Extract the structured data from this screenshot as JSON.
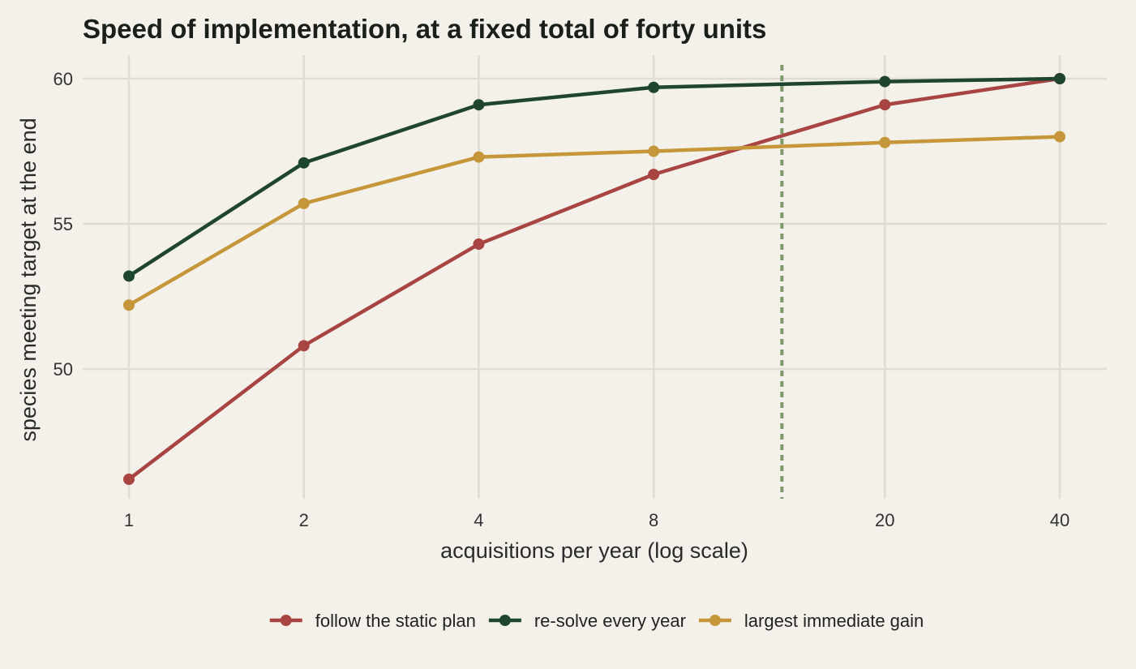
{
  "chart_data": {
    "type": "line",
    "title": "Speed of implementation, at a fixed total of forty units",
    "xlabel": "acquisitions per year (log scale)",
    "ylabel": "species meeting target at the end",
    "x_scale": "log",
    "x": [
      1,
      2,
      4,
      8,
      20,
      40
    ],
    "xticks": [
      "1",
      "2",
      "4",
      "8",
      "20",
      "40"
    ],
    "yticks": [
      50,
      55,
      60
    ],
    "xlim": [
      1,
      40
    ],
    "ylim": [
      45,
      60
    ],
    "grid": true,
    "legend_position": "bottom",
    "reference_line": {
      "orientation": "vertical",
      "x": 13.3,
      "style": "dotted",
      "color": "#7f9a6a"
    },
    "series": [
      {
        "name": "follow the static plan",
        "color": "#a84442",
        "values": [
          46.2,
          50.8,
          54.3,
          56.7,
          59.1,
          60.0
        ]
      },
      {
        "name": "re-solve every year",
        "color": "#1f4530",
        "values": [
          53.2,
          57.1,
          59.1,
          59.7,
          59.9,
          60.0
        ]
      },
      {
        "name": "largest immediate gain",
        "color": "#c6973a",
        "values": [
          52.2,
          55.7,
          57.3,
          57.5,
          57.8,
          58.0
        ]
      }
    ]
  }
}
